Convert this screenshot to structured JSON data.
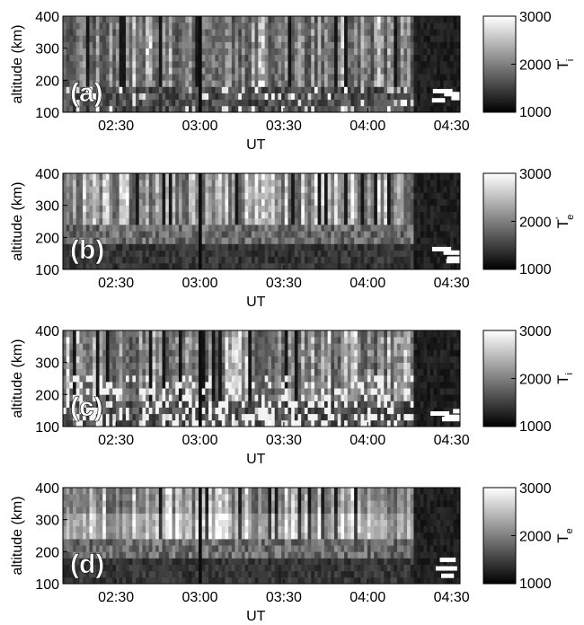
{
  "chart_data": [
    {
      "type": "heatmap",
      "panel_label": "(a)",
      "xlabel": "UT",
      "ylabel": "altitude (km)",
      "x_ticks": [
        "02:30",
        "03:00",
        "03:30",
        "04:00",
        "04:30"
      ],
      "x_tick_minutes": [
        150,
        180,
        210,
        240,
        270
      ],
      "x_range_minutes": [
        131,
        273
      ],
      "ylim": [
        100,
        400
      ],
      "y_ticks": [
        100,
        200,
        300,
        400
      ],
      "colorbar": {
        "label": "T",
        "sub": "i",
        "prime": true,
        "ticks": [
          1000,
          2000,
          3000
        ],
        "range": [
          1000,
          3000
        ],
        "colormap": "gray"
      },
      "pattern": "ion",
      "seed": 11
    },
    {
      "type": "heatmap",
      "panel_label": "(b)",
      "xlabel": "UT",
      "ylabel": "altitude (km)",
      "x_ticks": [
        "02:30",
        "03:00",
        "03:30",
        "04:00",
        "04:30"
      ],
      "x_tick_minutes": [
        150,
        180,
        210,
        240,
        270
      ],
      "x_range_minutes": [
        131,
        273
      ],
      "ylim": [
        100,
        400
      ],
      "y_ticks": [
        100,
        200,
        300,
        400
      ],
      "colorbar": {
        "label": "T",
        "sub": "e",
        "prime": true,
        "ticks": [
          1000,
          2000,
          3000
        ],
        "range": [
          1000,
          3000
        ],
        "colormap": "gray"
      },
      "pattern": "electron",
      "seed": 23
    },
    {
      "type": "heatmap",
      "panel_label": "(c)",
      "xlabel": "UT",
      "ylabel": "altitude (km)",
      "x_ticks": [
        "02:30",
        "03:00",
        "03:30",
        "04:00",
        "04:30"
      ],
      "x_tick_minutes": [
        150,
        180,
        210,
        240,
        270
      ],
      "x_range_minutes": [
        131,
        273
      ],
      "ylim": [
        100,
        400
      ],
      "y_ticks": [
        100,
        200,
        300,
        400
      ],
      "colorbar": {
        "label": "T",
        "sub": "i",
        "prime": false,
        "ticks": [
          1000,
          2000,
          3000
        ],
        "range": [
          1000,
          3000
        ],
        "colormap": "gray"
      },
      "pattern": "ion2",
      "seed": 37
    },
    {
      "type": "heatmap",
      "panel_label": "(d)",
      "xlabel": "UT",
      "ylabel": "altitude (km)",
      "x_ticks": [
        "02:30",
        "03:00",
        "03:30",
        "04:00",
        "04:30"
      ],
      "x_tick_minutes": [
        150,
        180,
        210,
        240,
        270
      ],
      "x_range_minutes": [
        131,
        273
      ],
      "ylim": [
        100,
        400
      ],
      "y_ticks": [
        100,
        200,
        300,
        400
      ],
      "colorbar": {
        "label": "T",
        "sub": "e",
        "prime": false,
        "ticks": [
          1000,
          2000,
          3000
        ],
        "range": [
          1000,
          3000
        ],
        "colormap": "gray"
      },
      "pattern": "electron2",
      "seed": 51
    }
  ]
}
